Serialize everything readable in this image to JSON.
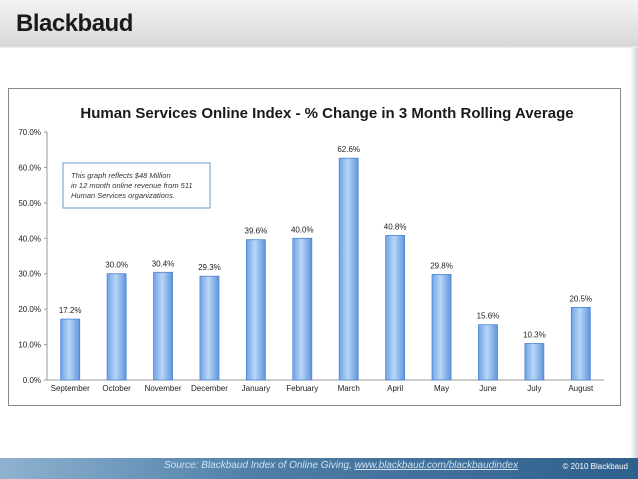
{
  "brand": {
    "logo_text": "Blackbaud"
  },
  "footer": {
    "source_prefix": "Source:  Blackbaud Index of Online Giving, ",
    "source_link": "www.blackbaud.com/blackbaudindex",
    "copyright": "© 2010 Blackbaud"
  },
  "chart_data": {
    "type": "bar",
    "title": "Human Services Online Index - % Change in 3 Month Rolling Average",
    "categories": [
      "September",
      "October",
      "November",
      "December",
      "January",
      "February",
      "March",
      "April",
      "May",
      "June",
      "July",
      "August"
    ],
    "values": [
      17.2,
      30.0,
      30.4,
      29.3,
      39.6,
      40.0,
      62.6,
      40.8,
      29.8,
      15.6,
      10.3,
      20.5
    ],
    "data_labels": [
      "17.2%",
      "30.0%",
      "30.4%",
      "29.3%",
      "39.6%",
      "40.0%",
      "62.6%",
      "40.8%",
      "29.8%",
      "15.6%",
      "10.3%",
      "20.5%"
    ],
    "y_ticks": [
      "0.0%",
      "10.0%",
      "20.0%",
      "30.0%",
      "40.0%",
      "50.0%",
      "60.0%",
      "70.0%"
    ],
    "ylim": [
      0,
      70
    ],
    "grid": false,
    "note_lines": [
      "This graph reflects $48 Million",
      "in 12 month online revenue from 511",
      "Human Services organizations."
    ],
    "bar_color": "#8fbcf0"
  }
}
